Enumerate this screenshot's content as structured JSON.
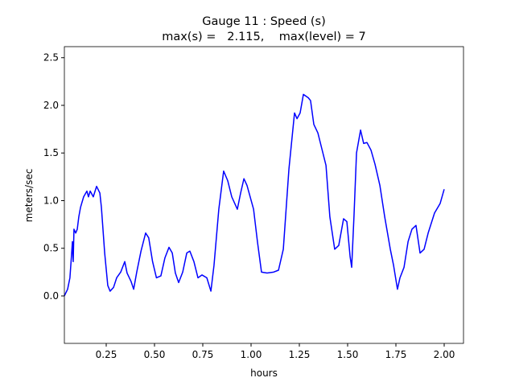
{
  "chart_data": {
    "type": "line",
    "title": "Gauge 11 : Speed (s)",
    "subtitle": "max(s) =   2.115,    max(level) = 7",
    "x_label": "hours",
    "y_label": "meters/sec",
    "x": [
      0.033,
      0.05,
      0.062,
      0.07,
      0.075,
      0.079,
      0.083,
      0.092,
      0.1,
      0.108,
      0.117,
      0.133,
      0.15,
      0.158,
      0.167,
      0.183,
      0.2,
      0.217,
      0.225,
      0.242,
      0.258,
      0.27,
      0.288,
      0.304,
      0.325,
      0.346,
      0.358,
      0.379,
      0.392,
      0.408,
      0.43,
      0.454,
      0.47,
      0.49,
      0.51,
      0.533,
      0.554,
      0.575,
      0.592,
      0.608,
      0.625,
      0.646,
      0.667,
      0.683,
      0.704,
      0.725,
      0.746,
      0.771,
      0.792,
      0.808,
      0.833,
      0.858,
      0.879,
      0.9,
      0.929,
      0.946,
      0.963,
      0.979,
      1.013,
      1.033,
      1.054,
      1.083,
      1.117,
      1.142,
      1.167,
      1.196,
      1.225,
      1.238,
      1.254,
      1.271,
      1.296,
      1.308,
      1.325,
      1.346,
      1.367,
      1.388,
      1.408,
      1.433,
      1.454,
      1.479,
      1.496,
      1.513,
      1.521,
      1.533,
      1.546,
      1.567,
      1.583,
      1.6,
      1.621,
      1.642,
      1.667,
      1.692,
      1.721,
      1.738,
      1.758,
      1.771,
      1.792,
      1.813,
      1.833,
      1.854,
      1.875,
      1.896,
      1.917,
      1.95,
      1.979,
      2.0
    ],
    "series": [
      {
        "name": "s",
        "color": "#0000ff",
        "values": [
          0.0,
          0.07,
          0.19,
          0.42,
          0.57,
          0.36,
          0.7,
          0.66,
          0.7,
          0.83,
          0.93,
          1.04,
          1.1,
          1.04,
          1.1,
          1.04,
          1.15,
          1.08,
          0.93,
          0.45,
          0.11,
          0.05,
          0.09,
          0.19,
          0.25,
          0.36,
          0.24,
          0.15,
          0.07,
          0.25,
          0.47,
          0.66,
          0.61,
          0.36,
          0.19,
          0.21,
          0.4,
          0.51,
          0.45,
          0.24,
          0.14,
          0.25,
          0.45,
          0.47,
          0.36,
          0.19,
          0.22,
          0.19,
          0.05,
          0.32,
          0.91,
          1.31,
          1.21,
          1.04,
          0.91,
          1.08,
          1.23,
          1.16,
          0.91,
          0.57,
          0.25,
          0.24,
          0.25,
          0.27,
          0.49,
          1.33,
          1.92,
          1.86,
          1.92,
          2.115,
          2.08,
          2.05,
          1.8,
          1.71,
          1.54,
          1.37,
          0.83,
          0.49,
          0.53,
          0.81,
          0.78,
          0.41,
          0.3,
          0.84,
          1.5,
          1.74,
          1.6,
          1.61,
          1.53,
          1.38,
          1.16,
          0.83,
          0.49,
          0.32,
          0.07,
          0.19,
          0.3,
          0.57,
          0.7,
          0.74,
          0.45,
          0.49,
          0.66,
          0.87,
          0.97,
          1.12
        ]
      }
    ],
    "xlim": [
      0.0333,
      2.1
    ],
    "ylim": [
      -0.498,
      2.616
    ],
    "xticks": [
      0.25,
      {
        "value": 0.5,
        "label": "0.50"
      },
      0.75,
      {
        "value": 1.0,
        "label": "1.00"
      },
      1.25,
      {
        "value": 1.5,
        "label": "1.50"
      },
      1.75,
      {
        "value": 2.0,
        "label": "2.00"
      }
    ],
    "yticks": [
      {
        "value": 0,
        "label": "0.0"
      },
      0.5,
      {
        "value": 1,
        "label": "1.0"
      },
      1.5,
      {
        "value": 2,
        "label": "2.0"
      },
      2.5
    ],
    "grid": false
  }
}
